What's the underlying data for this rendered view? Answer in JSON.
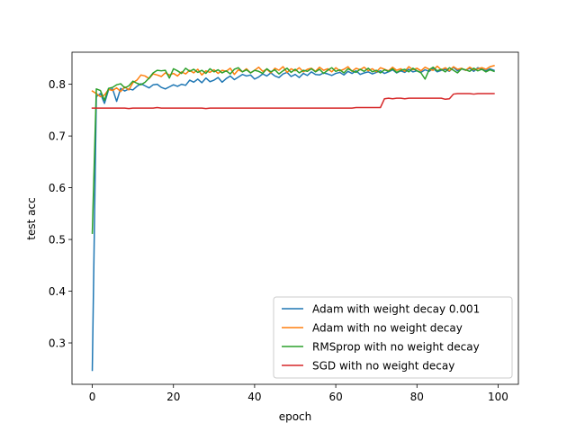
{
  "chart_data": {
    "type": "line",
    "title": "",
    "xlabel": "epoch",
    "ylabel": "test acc",
    "xlim": [
      -5,
      105
    ],
    "ylim": [
      0.22,
      0.862
    ],
    "xticks": [
      0,
      20,
      40,
      60,
      80,
      100
    ],
    "yticks": [
      0.3,
      0.4,
      0.5,
      0.6,
      0.7,
      0.8
    ],
    "xtick_labels": [
      "0",
      "20",
      "40",
      "60",
      "80",
      "100"
    ],
    "ytick_labels": [
      "0.3",
      "0.4",
      "0.5",
      "0.6",
      "0.7",
      "0.8"
    ],
    "grid": false,
    "legend_position": "lower-right",
    "series": [
      {
        "name": "Adam with weight decay 0.001",
        "color": "#1f77b4",
        "x": [
          0,
          1,
          2,
          3,
          4,
          5,
          6,
          7,
          8,
          9,
          10,
          11,
          12,
          13,
          14,
          15,
          16,
          17,
          18,
          19,
          20,
          21,
          22,
          23,
          24,
          25,
          26,
          27,
          28,
          29,
          30,
          31,
          32,
          33,
          34,
          35,
          36,
          37,
          38,
          39,
          40,
          41,
          42,
          43,
          44,
          45,
          46,
          47,
          48,
          49,
          50,
          51,
          52,
          53,
          54,
          55,
          56,
          57,
          58,
          59,
          60,
          61,
          62,
          63,
          64,
          65,
          66,
          67,
          68,
          69,
          70,
          71,
          72,
          73,
          74,
          75,
          76,
          77,
          78,
          79,
          80,
          81,
          82,
          83,
          84,
          85,
          86,
          87,
          88,
          89,
          90,
          91,
          92,
          93,
          94,
          95,
          96,
          97,
          98,
          99
        ],
        "values": [
          0.247,
          0.776,
          0.782,
          0.763,
          0.789,
          0.791,
          0.767,
          0.792,
          0.787,
          0.791,
          0.789,
          0.796,
          0.801,
          0.797,
          0.793,
          0.799,
          0.8,
          0.794,
          0.791,
          0.795,
          0.799,
          0.796,
          0.8,
          0.798,
          0.808,
          0.804,
          0.81,
          0.803,
          0.812,
          0.805,
          0.808,
          0.813,
          0.804,
          0.811,
          0.816,
          0.809,
          0.814,
          0.819,
          0.816,
          0.818,
          0.81,
          0.814,
          0.82,
          0.816,
          0.822,
          0.816,
          0.813,
          0.82,
          0.823,
          0.815,
          0.819,
          0.813,
          0.821,
          0.817,
          0.824,
          0.819,
          0.818,
          0.822,
          0.82,
          0.817,
          0.821,
          0.823,
          0.818,
          0.825,
          0.821,
          0.826,
          0.819,
          0.822,
          0.824,
          0.82,
          0.823,
          0.826,
          0.821,
          0.824,
          0.828,
          0.822,
          0.826,
          0.823,
          0.829,
          0.824,
          0.826,
          0.823,
          0.828,
          0.825,
          0.83,
          0.824,
          0.827,
          0.829,
          0.825,
          0.833,
          0.826,
          0.83,
          0.827,
          0.831,
          0.825,
          0.832,
          0.829,
          0.826,
          0.83,
          0.827
        ]
      },
      {
        "name": "Adam with no weight decay",
        "color": "#ff7f0e",
        "x": [
          0,
          1,
          2,
          3,
          4,
          5,
          6,
          7,
          8,
          9,
          10,
          11,
          12,
          13,
          14,
          15,
          16,
          17,
          18,
          19,
          20,
          21,
          22,
          23,
          24,
          25,
          26,
          27,
          28,
          29,
          30,
          31,
          32,
          33,
          34,
          35,
          36,
          37,
          38,
          39,
          40,
          41,
          42,
          43,
          44,
          45,
          46,
          47,
          48,
          49,
          50,
          51,
          52,
          53,
          54,
          55,
          56,
          57,
          58,
          59,
          60,
          61,
          62,
          63,
          64,
          65,
          66,
          67,
          68,
          69,
          70,
          71,
          72,
          73,
          74,
          75,
          76,
          77,
          78,
          79,
          80,
          81,
          82,
          83,
          84,
          85,
          86,
          87,
          88,
          89,
          90,
          91,
          92,
          93,
          94,
          95,
          96,
          97,
          98,
          99
        ],
        "values": [
          0.787,
          0.782,
          0.776,
          0.779,
          0.79,
          0.788,
          0.793,
          0.786,
          0.795,
          0.789,
          0.803,
          0.808,
          0.818,
          0.816,
          0.811,
          0.82,
          0.818,
          0.815,
          0.822,
          0.818,
          0.821,
          0.816,
          0.824,
          0.82,
          0.827,
          0.822,
          0.829,
          0.818,
          0.826,
          0.823,
          0.828,
          0.821,
          0.827,
          0.825,
          0.831,
          0.819,
          0.828,
          0.824,
          0.83,
          0.822,
          0.827,
          0.833,
          0.825,
          0.829,
          0.822,
          0.831,
          0.827,
          0.834,
          0.823,
          0.83,
          0.826,
          0.832,
          0.824,
          0.829,
          0.831,
          0.825,
          0.833,
          0.827,
          0.83,
          0.824,
          0.832,
          0.826,
          0.829,
          0.834,
          0.825,
          0.831,
          0.828,
          0.833,
          0.826,
          0.83,
          0.824,
          0.832,
          0.829,
          0.826,
          0.833,
          0.827,
          0.83,
          0.825,
          0.834,
          0.828,
          0.831,
          0.826,
          0.833,
          0.829,
          0.827,
          0.835,
          0.828,
          0.832,
          0.826,
          0.834,
          0.829,
          0.831,
          0.827,
          0.833,
          0.828,
          0.83,
          0.832,
          0.829,
          0.834,
          0.836
        ]
      },
      {
        "name": "RMSprop with no weight decay",
        "color": "#2ca02c",
        "x": [
          0,
          1,
          2,
          3,
          4,
          5,
          6,
          7,
          8,
          9,
          10,
          11,
          12,
          13,
          14,
          15,
          16,
          17,
          18,
          19,
          20,
          21,
          22,
          23,
          24,
          25,
          26,
          27,
          28,
          29,
          30,
          31,
          32,
          33,
          34,
          35,
          36,
          37,
          38,
          39,
          40,
          41,
          42,
          43,
          44,
          45,
          46,
          47,
          48,
          49,
          50,
          51,
          52,
          53,
          54,
          55,
          56,
          57,
          58,
          59,
          60,
          61,
          62,
          63,
          64,
          65,
          66,
          67,
          68,
          69,
          70,
          71,
          72,
          73,
          74,
          75,
          76,
          77,
          78,
          79,
          80,
          81,
          82,
          83,
          84,
          85,
          86,
          87,
          88,
          89,
          90,
          91,
          92,
          93,
          94,
          95,
          96,
          97,
          98,
          99
        ],
        "values": [
          0.512,
          0.791,
          0.788,
          0.769,
          0.792,
          0.794,
          0.799,
          0.801,
          0.793,
          0.797,
          0.806,
          0.802,
          0.799,
          0.804,
          0.812,
          0.822,
          0.827,
          0.826,
          0.827,
          0.812,
          0.83,
          0.826,
          0.821,
          0.831,
          0.825,
          0.829,
          0.823,
          0.827,
          0.821,
          0.83,
          0.824,
          0.828,
          0.822,
          0.826,
          0.82,
          0.829,
          0.832,
          0.824,
          0.828,
          0.822,
          0.827,
          0.825,
          0.821,
          0.83,
          0.824,
          0.828,
          0.82,
          0.826,
          0.831,
          0.823,
          0.829,
          0.822,
          0.827,
          0.825,
          0.83,
          0.824,
          0.829,
          0.821,
          0.827,
          0.832,
          0.825,
          0.828,
          0.822,
          0.83,
          0.826,
          0.823,
          0.829,
          0.825,
          0.831,
          0.824,
          0.827,
          0.822,
          0.828,
          0.825,
          0.83,
          0.823,
          0.827,
          0.829,
          0.824,
          0.831,
          0.826,
          0.822,
          0.81,
          0.828,
          0.833,
          0.826,
          0.829,
          0.824,
          0.832,
          0.827,
          0.822,
          0.83,
          0.828,
          0.825,
          0.831,
          0.826,
          0.829,
          0.824,
          0.828,
          0.825
        ]
      },
      {
        "name": "SGD with no weight decay",
        "color": "#d62728",
        "x": [
          0,
          1,
          2,
          3,
          4,
          5,
          6,
          7,
          8,
          9,
          10,
          11,
          12,
          13,
          14,
          15,
          16,
          17,
          18,
          19,
          20,
          21,
          22,
          23,
          24,
          25,
          26,
          27,
          28,
          29,
          30,
          31,
          32,
          33,
          34,
          35,
          36,
          37,
          38,
          39,
          40,
          41,
          42,
          43,
          44,
          45,
          46,
          47,
          48,
          49,
          50,
          51,
          52,
          53,
          54,
          55,
          56,
          57,
          58,
          59,
          60,
          61,
          62,
          63,
          64,
          65,
          66,
          67,
          68,
          69,
          70,
          71,
          72,
          73,
          74,
          75,
          76,
          77,
          78,
          79,
          80,
          81,
          82,
          83,
          84,
          85,
          86,
          87,
          88,
          89,
          90,
          91,
          92,
          93,
          94,
          95,
          96,
          97,
          98,
          99
        ],
        "values": [
          0.754,
          0.754,
          0.754,
          0.754,
          0.754,
          0.754,
          0.754,
          0.754,
          0.754,
          0.753,
          0.754,
          0.754,
          0.754,
          0.754,
          0.754,
          0.754,
          0.755,
          0.754,
          0.754,
          0.754,
          0.754,
          0.754,
          0.754,
          0.754,
          0.754,
          0.754,
          0.754,
          0.754,
          0.753,
          0.754,
          0.754,
          0.754,
          0.754,
          0.754,
          0.754,
          0.754,
          0.754,
          0.754,
          0.754,
          0.754,
          0.754,
          0.754,
          0.754,
          0.754,
          0.754,
          0.754,
          0.754,
          0.754,
          0.754,
          0.754,
          0.754,
          0.754,
          0.754,
          0.754,
          0.754,
          0.754,
          0.754,
          0.754,
          0.754,
          0.754,
          0.754,
          0.754,
          0.754,
          0.754,
          0.754,
          0.755,
          0.755,
          0.755,
          0.755,
          0.755,
          0.755,
          0.755,
          0.772,
          0.773,
          0.772,
          0.773,
          0.773,
          0.772,
          0.773,
          0.773,
          0.773,
          0.773,
          0.773,
          0.773,
          0.773,
          0.773,
          0.773,
          0.771,
          0.772,
          0.781,
          0.782,
          0.782,
          0.782,
          0.782,
          0.781,
          0.782,
          0.782,
          0.782,
          0.782,
          0.782
        ]
      }
    ]
  }
}
